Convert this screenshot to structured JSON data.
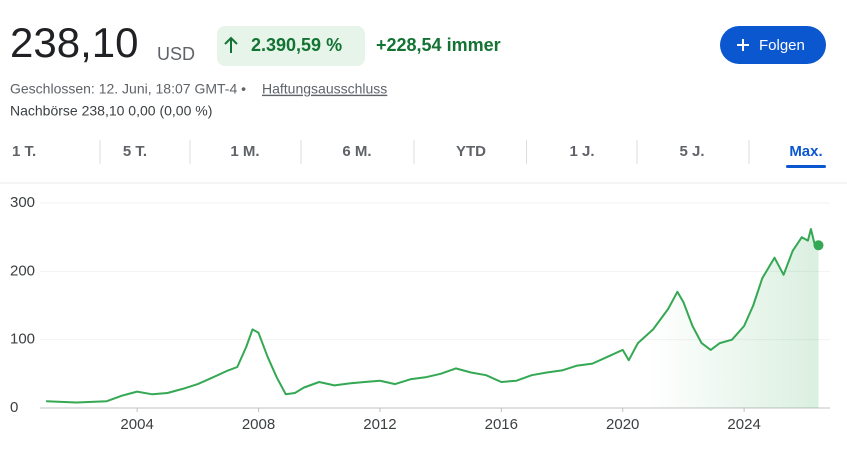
{
  "header": {
    "price": "238,10",
    "currency": "USD",
    "change_percent": "2.390,59 %",
    "change_abs": "+228,54 immer",
    "follow_button": "Folgen",
    "status": "Geschlossen: 12. Juni, 18:07 GMT-4 •",
    "disclaimer": "Haftungsausschluss",
    "after_hours": "Nachbörse 238,10 0,00 (0,00 %)"
  },
  "tabs": [
    "1 T.",
    "5 T.",
    "1 M.",
    "6 M.",
    "YTD",
    "1 J.",
    "5 J.",
    "Max."
  ],
  "chart_data": {
    "type": "line",
    "x": [
      2001.0,
      2001.5,
      2002.0,
      2002.5,
      2003.0,
      2003.5,
      2004.0,
      2004.5,
      2005.0,
      2005.5,
      2006.0,
      2006.5,
      2007.0,
      2007.3,
      2007.6,
      2007.8,
      2008.0,
      2008.3,
      2008.6,
      2008.9,
      2009.2,
      2009.5,
      2010.0,
      2010.5,
      2011.0,
      2011.5,
      2012.0,
      2012.5,
      2013.0,
      2013.5,
      2014.0,
      2014.5,
      2015.0,
      2015.5,
      2016.0,
      2016.5,
      2017.0,
      2017.5,
      2018.0,
      2018.5,
      2019.0,
      2019.5,
      2020.0,
      2020.2,
      2020.5,
      2021.0,
      2021.5,
      2021.8,
      2022.0,
      2022.3,
      2022.6,
      2022.9,
      2023.2,
      2023.6,
      2024.0,
      2024.3,
      2024.6,
      2025.0,
      2025.3,
      2025.6,
      2025.9,
      2026.1,
      2026.2,
      2026.35,
      2026.45
    ],
    "series": [
      {
        "color": "#34a853",
        "values": [
          10,
          9,
          8,
          9,
          10,
          18,
          24,
          20,
          22,
          28,
          35,
          45,
          55,
          60,
          90,
          115,
          110,
          75,
          45,
          20,
          22,
          30,
          38,
          33,
          36,
          38,
          40,
          35,
          42,
          45,
          50,
          58,
          52,
          48,
          38,
          40,
          48,
          52,
          55,
          62,
          65,
          75,
          85,
          70,
          95,
          115,
          145,
          170,
          155,
          120,
          95,
          85,
          95,
          100,
          120,
          150,
          190,
          220,
          195,
          230,
          250,
          245,
          262,
          235,
          238.1
        ]
      }
    ],
    "xlim": [
      2000.8,
      2026.5
    ],
    "ylim": [
      0,
      300
    ],
    "xticks": [
      2004,
      2008,
      2012,
      2016,
      2020,
      2024
    ],
    "yticks": [
      0,
      100,
      200,
      300
    ],
    "grid": true
  }
}
